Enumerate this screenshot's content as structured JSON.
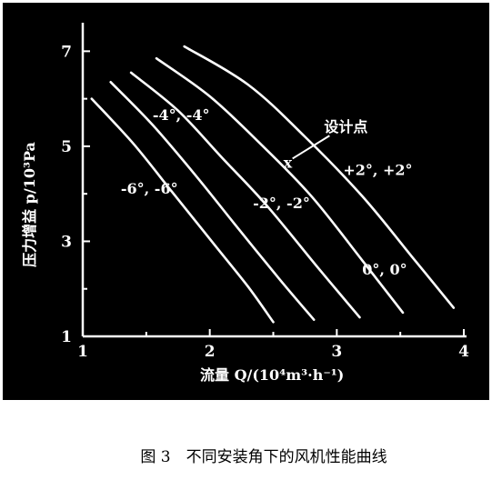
{
  "chart_data": {
    "type": "line",
    "title": "",
    "caption": "图 3　不同安装角下的风机性能曲线",
    "xlabel": "流量 Q/(10⁴m³·h⁻¹)",
    "ylabel": "压力增益 p/10³Pa",
    "xlim": [
      1,
      4
    ],
    "ylim": [
      1,
      7.6
    ],
    "xticks": [
      "1",
      "2",
      "3",
      "4"
    ],
    "yticks": [
      "1",
      "3",
      "5",
      "7"
    ],
    "background": "#000000",
    "line_color": "#ffffff",
    "series": [
      {
        "name": "-6°, -6°",
        "x": [
          1.07,
          1.4,
          1.7,
          2.0,
          2.3,
          2.5
        ],
        "y": [
          6.0,
          5.05,
          4.05,
          3.05,
          2.05,
          1.3
        ]
      },
      {
        "name": "-4°, -4°",
        "x": [
          1.22,
          1.55,
          1.9,
          2.2,
          2.55,
          2.82
        ],
        "y": [
          6.35,
          5.45,
          4.35,
          3.35,
          2.2,
          1.35
        ]
      },
      {
        "name": "-2°, -2°",
        "x": [
          1.38,
          1.75,
          2.1,
          2.45,
          2.85,
          3.18
        ],
        "y": [
          6.55,
          5.75,
          4.75,
          3.75,
          2.45,
          1.4
        ]
      },
      {
        "name": "0°, 0°",
        "x": [
          1.58,
          2.0,
          2.4,
          2.8,
          3.2,
          3.52
        ],
        "y": [
          6.85,
          6.05,
          5.05,
          3.95,
          2.6,
          1.5
        ]
      },
      {
        "name": "+2°, +2°",
        "x": [
          1.8,
          2.3,
          2.75,
          3.2,
          3.6,
          3.92
        ],
        "y": [
          7.1,
          6.3,
          5.2,
          3.95,
          2.65,
          1.6
        ]
      }
    ],
    "annotations": [
      {
        "text": "-6°, -6°",
        "x": 1.3,
        "y": 4.0
      },
      {
        "text": "-4°, -4°",
        "x": 1.55,
        "y": 5.55
      },
      {
        "text": "-2°, -2°",
        "x": 2.34,
        "y": 3.7
      },
      {
        "text": "0°, 0°",
        "x": 3.2,
        "y": 2.3
      },
      {
        "text": "+2°, +2°",
        "x": 3.05,
        "y": 4.4
      },
      {
        "text": "设计点",
        "x": 2.9,
        "y": 5.3
      },
      {
        "text": "x",
        "x": 2.58,
        "y": 4.55
      }
    ]
  }
}
